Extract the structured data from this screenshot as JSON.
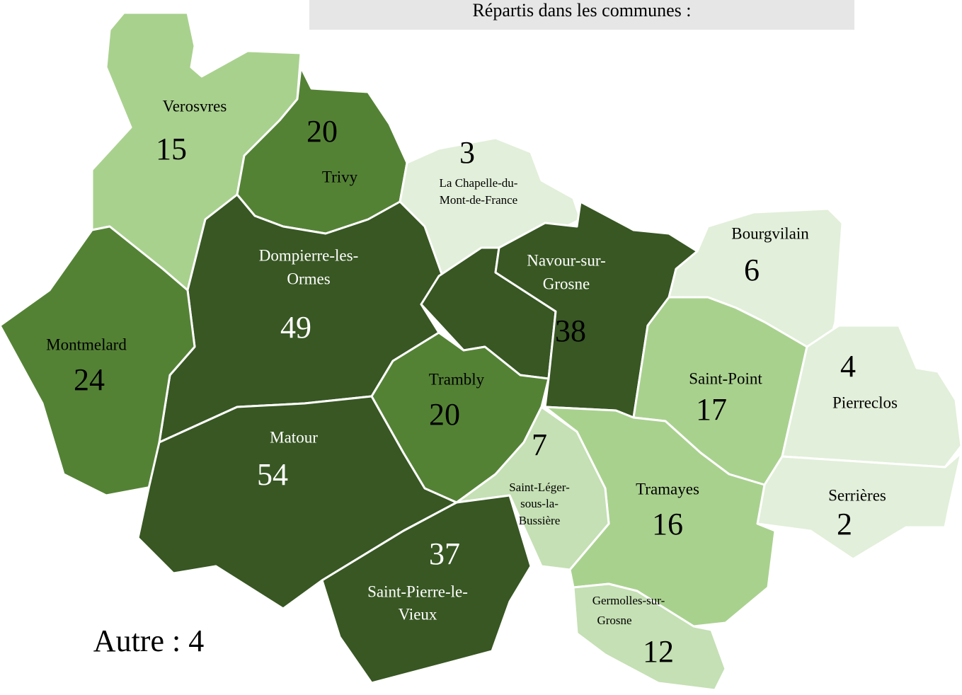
{
  "title": "Répartis dans les communes :",
  "communes": [
    {
      "name": [
        "Verosvres"
      ],
      "count": 15,
      "color": "#a9d18e"
    },
    {
      "name": [
        "Trivy"
      ],
      "count": 20,
      "color": "#548235"
    },
    {
      "name": [
        "La Chapelle-du-",
        "Mont-de-France"
      ],
      "count": 3,
      "color": "#e2efda"
    },
    {
      "name": [
        "Dompierre-les-",
        "Ormes"
      ],
      "count": 49,
      "color": "#385723"
    },
    {
      "name": [
        "Montmelard"
      ],
      "count": 24,
      "color": "#548235"
    },
    {
      "name": [
        "Navour-sur-",
        "Grosne"
      ],
      "count": 38,
      "color": "#385723"
    },
    {
      "name": [
        "Bourgvilain"
      ],
      "count": 6,
      "color": "#e2efda"
    },
    {
      "name": [
        "Trambly"
      ],
      "count": 20,
      "color": "#548235"
    },
    {
      "name": [
        "Saint-Point"
      ],
      "count": 17,
      "color": "#a9d18e"
    },
    {
      "name": [
        "Pierreclos"
      ],
      "count": 4,
      "color": "#e2efda"
    },
    {
      "name": [
        "Serrières"
      ],
      "count": 2,
      "color": "#e2efda"
    },
    {
      "name": [
        "Tramayes"
      ],
      "count": 16,
      "color": "#a9d18e"
    },
    {
      "name": [
        "Saint-Léger-",
        "sous-la-",
        "Bussière"
      ],
      "count": 7,
      "color": "#c5e0b4"
    },
    {
      "name": [
        "Matour"
      ],
      "count": 54,
      "color": "#385723"
    },
    {
      "name": [
        "Saint-Pierre-le-",
        "Vieux"
      ],
      "count": 37,
      "color": "#385723"
    },
    {
      "name": [
        "Germolles-sur-",
        "Grosne"
      ],
      "count": 12,
      "color": "#c5e0b4"
    }
  ],
  "other": {
    "label": "Autre :",
    "count": 4
  }
}
